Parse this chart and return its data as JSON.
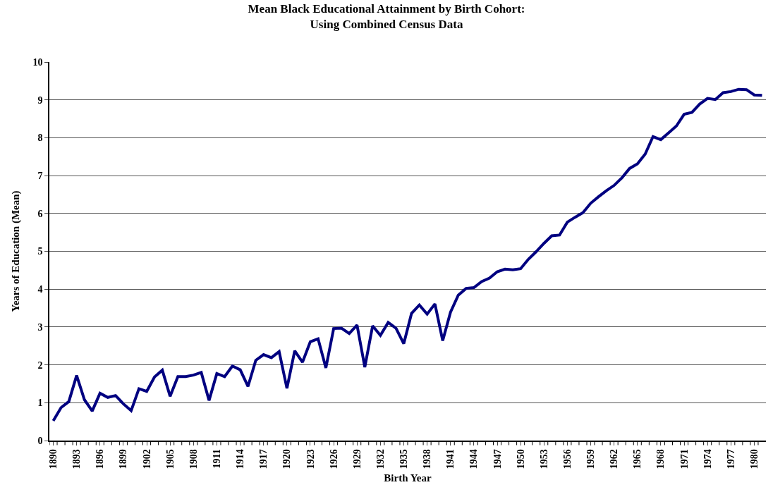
{
  "chart_data": {
    "type": "line",
    "title": "Mean Black Educational Attainment by Birth Cohort:\nUsing Combined Census Data",
    "xlabel": "Birth Year",
    "ylabel": "Years of Education (Mean)",
    "categories": [
      "1890",
      null,
      null,
      "1893",
      null,
      null,
      "1896",
      null,
      null,
      "1899",
      null,
      null,
      "1902",
      null,
      null,
      "1905",
      null,
      null,
      "1908",
      null,
      null,
      "1911",
      null,
      null,
      "1914",
      null,
      null,
      "1917",
      null,
      null,
      "1920",
      null,
      null,
      "1923",
      null,
      null,
      "1926",
      null,
      null,
      "1929",
      null,
      null,
      "1932",
      null,
      null,
      "1935",
      null,
      null,
      "1938",
      null,
      null,
      "1941",
      null,
      null,
      "1944",
      null,
      null,
      "1947",
      null,
      null,
      "1950",
      null,
      null,
      "1953",
      null,
      null,
      "1956",
      null,
      null,
      "1959",
      null,
      null,
      "1962",
      null,
      null,
      "1965",
      null,
      null,
      "1968",
      null,
      null,
      "1971",
      null,
      null,
      "1974",
      null,
      null,
      "1977",
      null,
      null,
      "1980",
      null
    ],
    "series": [
      {
        "color": "#000080",
        "values": [
          0.52,
          0.87,
          1.03,
          1.72,
          1.08,
          0.78,
          1.25,
          1.14,
          1.19,
          0.97,
          0.79,
          1.37,
          1.3,
          1.68,
          1.86,
          1.17,
          1.69,
          1.69,
          1.73,
          1.8,
          1.06,
          1.77,
          1.69,
          1.97,
          1.87,
          1.43,
          2.12,
          2.27,
          2.19,
          2.35,
          1.38,
          2.37,
          2.07,
          2.61,
          2.69,
          1.92,
          2.96,
          2.97,
          2.83,
          3.05,
          1.94,
          3.03,
          2.78,
          3.12,
          2.97,
          2.56,
          3.36,
          3.58,
          3.34,
          3.61,
          2.64,
          3.39,
          3.84,
          4.02,
          4.04,
          4.2,
          4.29,
          4.46,
          4.53,
          4.51,
          4.54,
          4.79,
          4.99,
          5.21,
          5.41,
          5.43,
          5.77,
          5.9,
          6.02,
          6.27,
          6.44,
          6.6,
          6.74,
          6.94,
          7.19,
          7.31,
          7.57,
          8.03,
          7.95,
          8.13,
          8.31,
          8.62,
          8.67,
          8.89,
          9.04,
          9.01,
          9.19,
          9.22,
          9.28,
          9.27,
          9.13,
          9.12
        ]
      }
    ],
    "ylim": [
      0,
      10
    ],
    "yticks": [
      0,
      1,
      2,
      3,
      4,
      5,
      6,
      7,
      8,
      9,
      10
    ],
    "grid": "y",
    "marker": "none",
    "line_style": "solid"
  }
}
